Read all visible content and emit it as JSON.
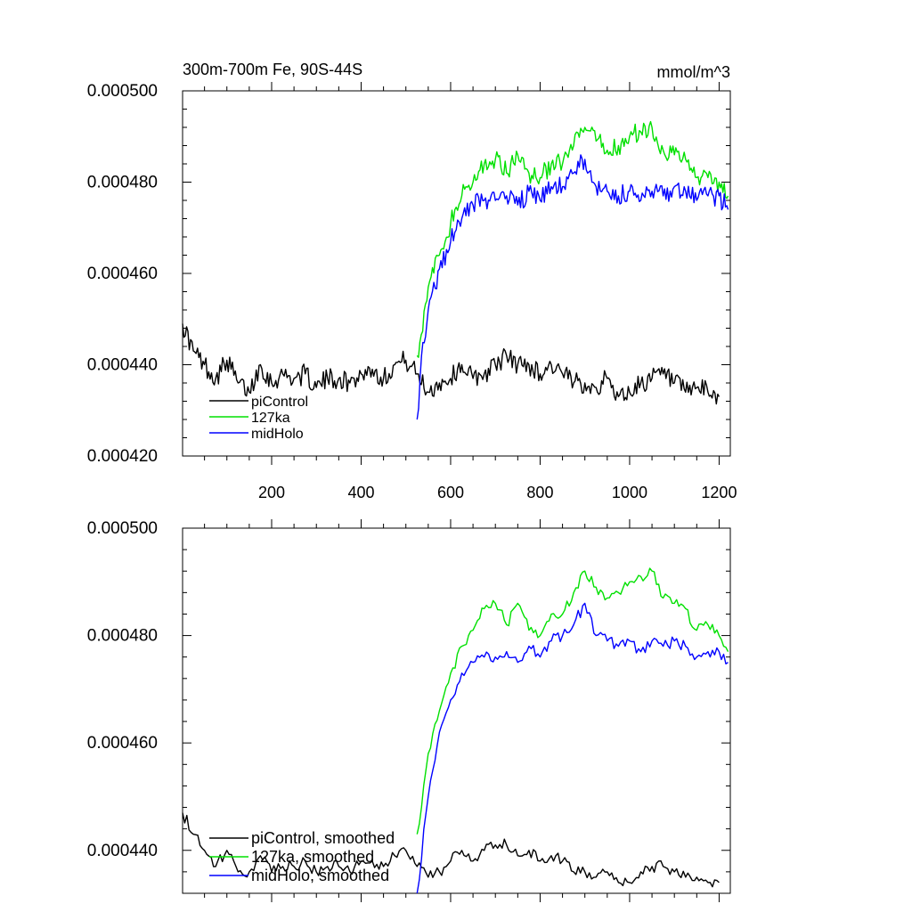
{
  "chart_data": [
    {
      "type": "line",
      "title": "300m-700m Fe, 90S-44S",
      "units": "mmol/m^3",
      "xlabel": "",
      "ylabel": "",
      "xlim": [
        1,
        1225
      ],
      "ylim": [
        0.00042,
        0.0005
      ],
      "xticks": [
        200,
        400,
        600,
        800,
        1000,
        1200
      ],
      "xtick_labels": [
        "200",
        "400",
        "600",
        "800",
        "1000",
        "1200"
      ],
      "yticks": [
        0.00042,
        0.00044,
        0.00046,
        0.00048,
        0.0005
      ],
      "ytick_labels": [
        "0.000420",
        "0.000440",
        "0.000460",
        "0.000480",
        "0.000500"
      ],
      "legend_position": "bottom-left",
      "series": [
        {
          "name": "piControl",
          "color": "#000000",
          "x": [
            1,
            25,
            50,
            75,
            100,
            125,
            150,
            175,
            200,
            225,
            250,
            275,
            300,
            325,
            350,
            375,
            400,
            425,
            450,
            475,
            500,
            525,
            550,
            575,
            600,
            625,
            650,
            675,
            700,
            725,
            750,
            775,
            800,
            825,
            850,
            875,
            900,
            925,
            950,
            975,
            1000,
            1025,
            1050,
            1075,
            1100,
            1125,
            1150,
            1175,
            1200
          ],
          "values": [
            0.000449,
            0.000443,
            0.00044,
            0.000437,
            0.000441,
            0.000436,
            0.000434,
            0.00044,
            0.000436,
            0.000438,
            0.000437,
            0.000438,
            0.000435,
            0.000437,
            0.000437,
            0.000436,
            0.000438,
            0.000439,
            0.000437,
            0.00044,
            0.000441,
            0.000438,
            0.000434,
            0.000436,
            0.000437,
            0.00044,
            0.000437,
            0.000438,
            0.00044,
            0.000442,
            0.00044,
            0.00044,
            0.000438,
            0.00044,
            0.000438,
            0.000436,
            0.000436,
            0.000435,
            0.000437,
            0.000433,
            0.000434,
            0.000436,
            0.000437,
            0.000438,
            0.000436,
            0.000434,
            0.000435,
            0.000434,
            0.000433
          ]
        },
        {
          "name": "127ka",
          "color": "#00e000",
          "x": [
            525,
            550,
            575,
            600,
            625,
            650,
            675,
            700,
            725,
            750,
            775,
            800,
            825,
            850,
            875,
            900,
            925,
            950,
            975,
            1000,
            1025,
            1050,
            1075,
            1100,
            1125,
            1150,
            1175,
            1200,
            1220
          ],
          "values": [
            0.000442,
            0.000457,
            0.000464,
            0.000471,
            0.000477,
            0.00048,
            0.000484,
            0.000485,
            0.000482,
            0.000486,
            0.000482,
            0.000481,
            0.000484,
            0.000484,
            0.000488,
            0.000492,
            0.000489,
            0.000487,
            0.000488,
            0.00049,
            0.000491,
            0.000492,
            0.000487,
            0.000486,
            0.000485,
            0.000481,
            0.000481,
            0.00048,
            0.000477
          ]
        },
        {
          "name": "midHolo",
          "color": "#0000ff",
          "x": [
            525,
            535,
            550,
            575,
            600,
            625,
            650,
            675,
            700,
            725,
            750,
            775,
            800,
            825,
            850,
            875,
            900,
            925,
            950,
            975,
            1000,
            1025,
            1050,
            1075,
            1100,
            1125,
            1150,
            1175,
            1200,
            1220
          ],
          "values": [
            0.000428,
            0.000442,
            0.000452,
            0.000461,
            0.000467,
            0.000472,
            0.000475,
            0.000476,
            0.000476,
            0.000477,
            0.000475,
            0.000478,
            0.000476,
            0.000479,
            0.000479,
            0.000482,
            0.000485,
            0.000479,
            0.000478,
            0.000477,
            0.000478,
            0.000476,
            0.000478,
            0.000477,
            0.000479,
            0.000478,
            0.000476,
            0.000477,
            0.000477,
            0.000474
          ]
        }
      ]
    },
    {
      "type": "line",
      "title": "",
      "xlim": [
        1,
        1225
      ],
      "ylim": [
        0.000432,
        0.0005
      ],
      "xticks": [
        200,
        400,
        600,
        800,
        1000,
        1200
      ],
      "yticks": [
        0.00044,
        0.00046,
        0.00048,
        0.0005
      ],
      "ytick_labels": [
        "0.000440",
        "0.000460",
        "0.000480",
        "0.000500"
      ],
      "legend_position": "bottom-left",
      "series": [
        {
          "name": "piControl, smoothed",
          "color": "#000000",
          "x": [
            1,
            25,
            50,
            75,
            100,
            125,
            150,
            175,
            200,
            225,
            250,
            275,
            300,
            325,
            350,
            375,
            400,
            425,
            450,
            475,
            500,
            525,
            550,
            575,
            600,
            625,
            650,
            675,
            700,
            725,
            750,
            775,
            800,
            825,
            850,
            875,
            900,
            925,
            950,
            975,
            1000,
            1025,
            1050,
            1075,
            1100,
            1125,
            1150,
            1175,
            1200
          ],
          "values": [
            0.000447,
            0.000443,
            0.00044,
            0.000437,
            0.00044,
            0.000436,
            0.000436,
            0.000439,
            0.000436,
            0.000437,
            0.000437,
            0.000438,
            0.000436,
            0.000437,
            0.000437,
            0.000436,
            0.000438,
            0.000438,
            0.000437,
            0.000439,
            0.00044,
            0.000437,
            0.000435,
            0.000436,
            0.000438,
            0.00044,
            0.000438,
            0.00044,
            0.000441,
            0.000441,
            0.000439,
            0.00044,
            0.000438,
            0.000439,
            0.000438,
            0.000436,
            0.000436,
            0.000435,
            0.000436,
            0.000434,
            0.000434,
            0.000436,
            0.000437,
            0.000437,
            0.000436,
            0.000435,
            0.000435,
            0.000434,
            0.000434
          ]
        },
        {
          "name": "127ka, smoothed",
          "color": "#00e000",
          "x": [
            525,
            550,
            575,
            600,
            625,
            650,
            675,
            700,
            725,
            750,
            775,
            800,
            825,
            850,
            875,
            900,
            925,
            950,
            975,
            1000,
            1025,
            1050,
            1075,
            1100,
            1125,
            1150,
            1175,
            1200,
            1220
          ],
          "values": [
            0.000443,
            0.000458,
            0.000466,
            0.000473,
            0.000478,
            0.000481,
            0.000485,
            0.000486,
            0.000482,
            0.000486,
            0.000481,
            0.00048,
            0.000484,
            0.000484,
            0.000488,
            0.000492,
            0.000489,
            0.000487,
            0.000488,
            0.00049,
            0.000491,
            0.000492,
            0.000487,
            0.000486,
            0.000485,
            0.000481,
            0.000482,
            0.00048,
            0.000477
          ]
        },
        {
          "name": "midHolo, smoothed",
          "color": "#0000ff",
          "x": [
            525,
            550,
            575,
            600,
            625,
            650,
            675,
            700,
            725,
            750,
            775,
            800,
            825,
            850,
            875,
            900,
            925,
            950,
            975,
            1000,
            1025,
            1050,
            1075,
            1100,
            1125,
            1150,
            1175,
            1200,
            1220
          ],
          "values": [
            0.000432,
            0.00045,
            0.000462,
            0.000468,
            0.000473,
            0.000475,
            0.000476,
            0.000476,
            0.000477,
            0.000475,
            0.000478,
            0.000476,
            0.000479,
            0.00048,
            0.000482,
            0.000486,
            0.00048,
            0.000479,
            0.000478,
            0.000479,
            0.000477,
            0.000479,
            0.000478,
            0.000479,
            0.000478,
            0.000476,
            0.000477,
            0.000477,
            0.000475
          ]
        }
      ]
    }
  ]
}
